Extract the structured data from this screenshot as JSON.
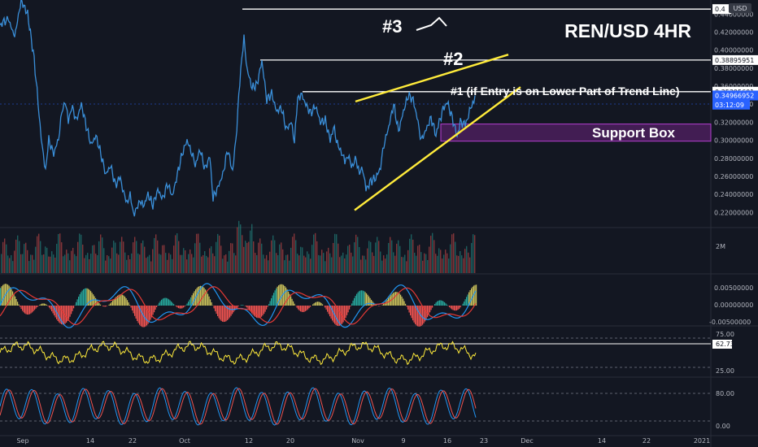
{
  "chart_data": {
    "type": "line",
    "title": "REN/USD 4HR",
    "price_axis": {
      "ticks": [
        "0.44000000",
        "0.42000000",
        "0.40000000",
        "0.38000000",
        "0.36000000",
        "0.34000000",
        "0.32000000",
        "0.30000000",
        "0.28000000",
        "0.26000000",
        "0.24000000",
        "0.22000000"
      ],
      "ylim": [
        0.205,
        0.452
      ]
    },
    "x_ticks": [
      "Sep",
      "14",
      "22",
      "Oct",
      "12",
      "20",
      "Nov",
      "9",
      "16",
      "23",
      "Dec",
      "14",
      "22",
      "2021"
    ],
    "price_series": {
      "name": "REN/USD",
      "color": "#3a8fd9",
      "points": [
        [
          0,
          0.428
        ],
        [
          10,
          0.435
        ],
        [
          18,
          0.415
        ],
        [
          26,
          0.455
        ],
        [
          34,
          0.44
        ],
        [
          42,
          0.39
        ],
        [
          48,
          0.33
        ],
        [
          52,
          0.29
        ],
        [
          56,
          0.268
        ],
        [
          60,
          0.3
        ],
        [
          66,
          0.285
        ],
        [
          72,
          0.302
        ],
        [
          76,
          0.33
        ],
        [
          80,
          0.345
        ],
        [
          84,
          0.32
        ],
        [
          88,
          0.338
        ],
        [
          94,
          0.322
        ],
        [
          100,
          0.34
        ],
        [
          106,
          0.316
        ],
        [
          112,
          0.295
        ],
        [
          118,
          0.305
        ],
        [
          124,
          0.285
        ],
        [
          130,
          0.262
        ],
        [
          136,
          0.272
        ],
        [
          142,
          0.25
        ],
        [
          148,
          0.26
        ],
        [
          152,
          0.24
        ],
        [
          156,
          0.232
        ],
        [
          160,
          0.238
        ],
        [
          164,
          0.22
        ],
        [
          168,
          0.222
        ],
        [
          172,
          0.235
        ],
        [
          176,
          0.226
        ],
        [
          182,
          0.24
        ],
        [
          188,
          0.228
        ],
        [
          194,
          0.245
        ],
        [
          200,
          0.235
        ],
        [
          206,
          0.252
        ],
        [
          212,
          0.238
        ],
        [
          218,
          0.262
        ],
        [
          224,
          0.285
        ],
        [
          230,
          0.3
        ],
        [
          236,
          0.285
        ],
        [
          240,
          0.272
        ],
        [
          246,
          0.29
        ],
        [
          252,
          0.268
        ],
        [
          258,
          0.282
        ],
        [
          262,
          0.236
        ],
        [
          268,
          0.248
        ],
        [
          274,
          0.262
        ],
        [
          280,
          0.29
        ],
        [
          286,
          0.265
        ],
        [
          290,
          0.3
        ],
        [
          296,
          0.38
        ],
        [
          300,
          0.412
        ],
        [
          304,
          0.378
        ],
        [
          310,
          0.358
        ],
        [
          316,
          0.362
        ],
        [
          322,
          0.388
        ],
        [
          328,
          0.345
        ],
        [
          334,
          0.352
        ],
        [
          340,
          0.332
        ],
        [
          346,
          0.336
        ],
        [
          352,
          0.312
        ],
        [
          358,
          0.32
        ],
        [
          362,
          0.3
        ],
        [
          366,
          0.345
        ],
        [
          370,
          0.352
        ],
        [
          376,
          0.34
        ],
        [
          382,
          0.33
        ],
        [
          388,
          0.338
        ],
        [
          394,
          0.32
        ],
        [
          400,
          0.322
        ],
        [
          406,
          0.3
        ],
        [
          410,
          0.315
        ],
        [
          416,
          0.292
        ],
        [
          420,
          0.288
        ],
        [
          424,
          0.275
        ],
        [
          428,
          0.285
        ],
        [
          432,
          0.27
        ],
        [
          438,
          0.28
        ],
        [
          442,
          0.262
        ],
        [
          446,
          0.27
        ],
        [
          450,
          0.245
        ],
        [
          456,
          0.255
        ],
        [
          462,
          0.258
        ],
        [
          468,
          0.27
        ],
        [
          472,
          0.295
        ],
        [
          478,
          0.315
        ],
        [
          484,
          0.34
        ],
        [
          490,
          0.31
        ],
        [
          496,
          0.332
        ],
        [
          502,
          0.35
        ],
        [
          508,
          0.345
        ],
        [
          514,
          0.32
        ],
        [
          518,
          0.3
        ],
        [
          524,
          0.312
        ],
        [
          530,
          0.325
        ],
        [
          536,
          0.306
        ],
        [
          540,
          0.32
        ],
        [
          546,
          0.338
        ],
        [
          550,
          0.342
        ],
        [
          556,
          0.325
        ],
        [
          562,
          0.305
        ],
        [
          566,
          0.32
        ],
        [
          572,
          0.318
        ],
        [
          576,
          0.328
        ],
        [
          580,
          0.338
        ],
        [
          584,
          0.3497
        ]
      ]
    },
    "horizontal_levels": [
      {
        "label": "0.4",
        "value": 0.4455,
        "color": "#ffffff"
      },
      {
        "label": "0.38895951",
        "value": 0.38896,
        "color": "#ffffff"
      },
      {
        "label": "0.35395601",
        "value": 0.35396,
        "color": "#ffffff"
      }
    ],
    "price_tags": [
      {
        "label": "0.34966952",
        "value": 0.3497,
        "color": "#2962ff"
      },
      {
        "label": "03:12:09",
        "value": 0.3395,
        "color": "#2962ff"
      }
    ],
    "trend_lines": [
      {
        "name": "upper",
        "color": "#ffeb3b",
        "from": [
          0.343,
          0.3285
        ],
        "to": [
          0.395,
          0.399
        ]
      },
      {
        "name": "lower",
        "color": "#ffeb3b",
        "from": [
          0.2225,
          0.2165
        ],
        "to": [
          0.359,
          0.366
        ]
      }
    ],
    "support_box": {
      "label": "Support Box",
      "top": 0.318,
      "bottom": 0.299,
      "color": "#9c27b0"
    },
    "annotations": {
      "entry": "#1 (if Entry is on Lower Part of Trend Line)",
      "target2": "#2",
      "target3": "#3"
    },
    "volume_panel": {
      "label": "2M"
    },
    "macd_panel": {
      "ticks": [
        "0.00500000",
        "0.00000000",
        "-0.00500000"
      ]
    },
    "rsi_panel": {
      "ticks": [
        "75.00",
        "25.00"
      ],
      "value": "62.73",
      "upper": 75,
      "lower": 25,
      "current": 62.73
    },
    "stoch_panel": {
      "ticks": [
        "80.00",
        "0.00"
      ]
    },
    "colors": {
      "background": "#131722",
      "price": "#3a8fd9",
      "rsi": "#ffeb3b",
      "macd_up": "#26a69a",
      "macd_down": "#ef5350",
      "text": "#b2b5be"
    }
  },
  "ui": {
    "corner_badge": "USD"
  }
}
